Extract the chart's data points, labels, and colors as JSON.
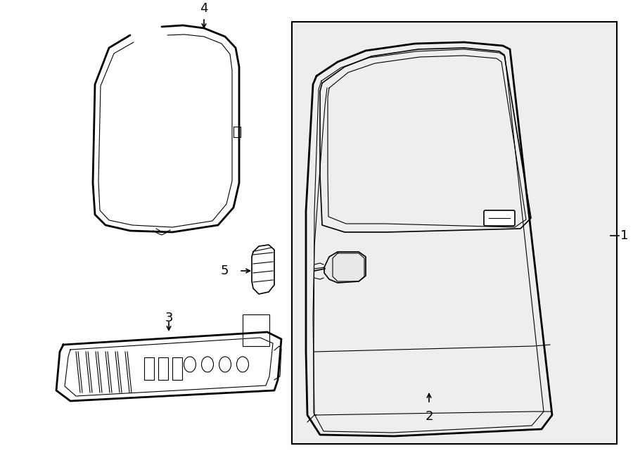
{
  "bg_color": "#ffffff",
  "line_color": "#000000",
  "box_bg": "#eeeeee",
  "font_size_label": 13,
  "label_1": "1",
  "label_2": "2",
  "label_3": "3",
  "label_4": "4",
  "label_5": "5"
}
